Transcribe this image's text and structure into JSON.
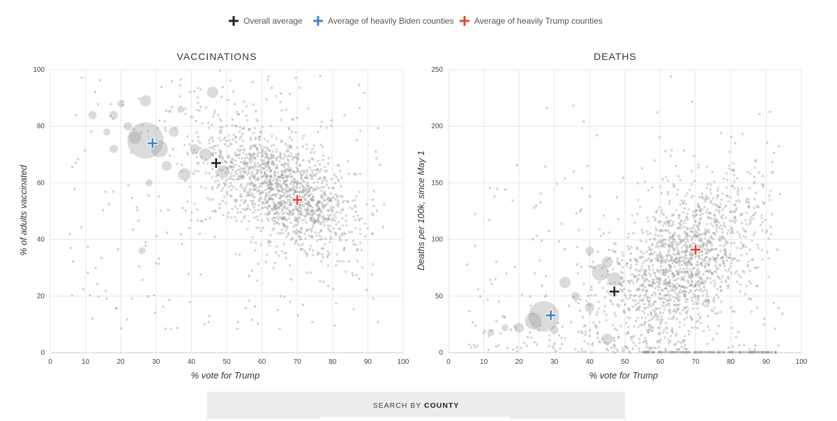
{
  "legend": [
    {
      "label": "Overall average",
      "color": "#222222"
    },
    {
      "label": "Average of heavily Biden counties",
      "color": "#3d85c6"
    },
    {
      "label": "Average of heavily Trump counties",
      "color": "#e0442f"
    }
  ],
  "search": {
    "prefix": "SEARCH BY",
    "field": "COUNTY"
  },
  "chart_data": [
    {
      "type": "scatter",
      "title": "VACCINATIONS",
      "xlabel": "% vote for Trump",
      "ylabel": "% of adults vaccinated",
      "xlim": [
        0,
        100
      ],
      "ylim": [
        0,
        100
      ],
      "xticks": [
        "0",
        "10",
        "20",
        "30",
        "40",
        "50",
        "60",
        "70",
        "80",
        "90",
        "100"
      ],
      "yticks": [
        "0",
        "20",
        "40",
        "60",
        "80",
        "100"
      ],
      "grid": true,
      "point_color": "#999999",
      "markers": [
        {
          "name": "Overall average",
          "x": 47,
          "y": 67,
          "color": "#222222"
        },
        {
          "name": "Average of heavily Biden counties",
          "x": 29,
          "y": 74,
          "color": "#3d85c6"
        },
        {
          "name": "Average of heavily Trump counties",
          "x": 70,
          "y": 54,
          "color": "#e0442f"
        }
      ],
      "large_points": [
        {
          "x": 27,
          "y": 75,
          "r": 26
        },
        {
          "x": 31,
          "y": 72,
          "r": 12
        },
        {
          "x": 24,
          "y": 76,
          "r": 9
        },
        {
          "x": 46,
          "y": 92,
          "r": 8
        },
        {
          "x": 27,
          "y": 89,
          "r": 8
        },
        {
          "x": 38,
          "y": 63,
          "r": 9
        },
        {
          "x": 44,
          "y": 70,
          "r": 9
        },
        {
          "x": 49,
          "y": 64,
          "r": 9
        },
        {
          "x": 41,
          "y": 72,
          "r": 7
        },
        {
          "x": 33,
          "y": 66,
          "r": 7
        },
        {
          "x": 12,
          "y": 84,
          "r": 6
        },
        {
          "x": 18,
          "y": 84,
          "r": 6
        },
        {
          "x": 18,
          "y": 72,
          "r": 6
        },
        {
          "x": 22,
          "y": 80,
          "r": 6
        },
        {
          "x": 35,
          "y": 78,
          "r": 7
        },
        {
          "x": 16,
          "y": 78,
          "r": 5
        },
        {
          "x": 28,
          "y": 60,
          "r": 5
        },
        {
          "x": 26,
          "y": 36,
          "r": 5
        },
        {
          "x": 20,
          "y": 88,
          "r": 5
        },
        {
          "x": 37,
          "y": 86,
          "r": 5
        }
      ],
      "cluster": {
        "center_x": 65,
        "center_y": 58,
        "slope": -0.58,
        "spread_y": 9,
        "count": 1400,
        "x_min": 33,
        "x_max": 92
      },
      "scatter": {
        "count": 260
      }
    },
    {
      "type": "scatter",
      "title": "DEATHS",
      "xlabel": "% vote for Trump",
      "ylabel": "Deaths per 100k, since May 1",
      "xlim": [
        0,
        100
      ],
      "ylim": [
        0,
        250
      ],
      "xticks": [
        "0",
        "10",
        "20",
        "30",
        "40",
        "50",
        "60",
        "70",
        "80",
        "90",
        "100"
      ],
      "yticks": [
        "0",
        "50",
        "100",
        "150",
        "200",
        "250"
      ],
      "grid": true,
      "point_color": "#999999",
      "markers": [
        {
          "name": "Overall average",
          "x": 47,
          "y": 54,
          "color": "#222222"
        },
        {
          "name": "Average of heavily Biden counties",
          "x": 29,
          "y": 33,
          "color": "#3d85c6"
        },
        {
          "name": "Average of heavily Trump counties",
          "x": 70,
          "y": 91,
          "color": "#e0442f"
        }
      ],
      "large_points": [
        {
          "x": 27,
          "y": 32,
          "r": 22
        },
        {
          "x": 24,
          "y": 28,
          "r": 12
        },
        {
          "x": 43,
          "y": 71,
          "r": 12
        },
        {
          "x": 47,
          "y": 65,
          "r": 10
        },
        {
          "x": 45,
          "y": 80,
          "r": 8
        },
        {
          "x": 33,
          "y": 62,
          "r": 8
        },
        {
          "x": 45,
          "y": 12,
          "r": 8
        },
        {
          "x": 40,
          "y": 40,
          "r": 7
        },
        {
          "x": 20,
          "y": 22,
          "r": 7
        },
        {
          "x": 40,
          "y": 90,
          "r": 6
        },
        {
          "x": 30,
          "y": 20,
          "r": 6
        },
        {
          "x": 36,
          "y": 50,
          "r": 6
        },
        {
          "x": 16,
          "y": 22,
          "r": 5
        },
        {
          "x": 12,
          "y": 18,
          "r": 5
        }
      ],
      "cluster": {
        "center_x": 66,
        "center_y": 80,
        "slope": 1.7,
        "spread_y": 32,
        "count": 1500,
        "x_min": 22,
        "x_max": 92
      },
      "scatter": {
        "count": 260
      },
      "zero_row": {
        "x_min": 55,
        "x_max": 93,
        "count": 130
      }
    }
  ]
}
